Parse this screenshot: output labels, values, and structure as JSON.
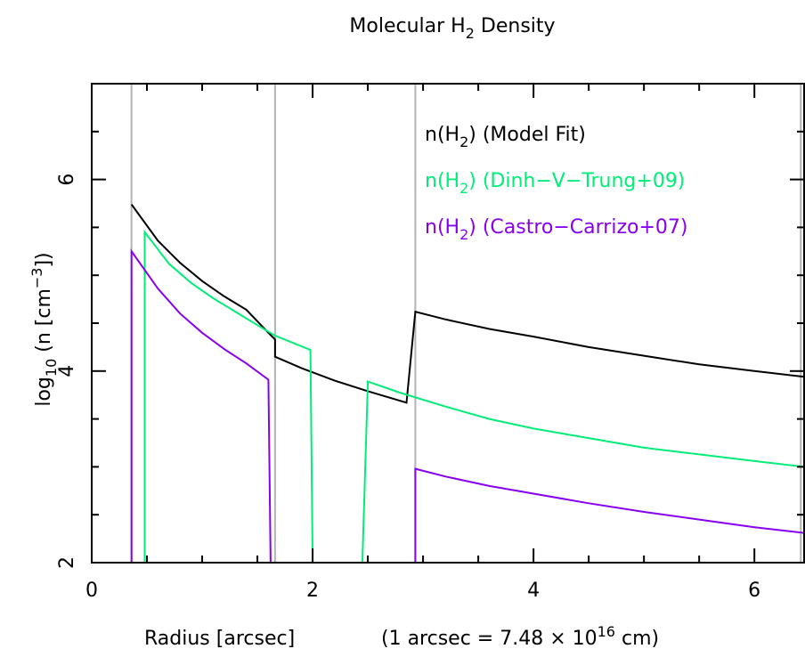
{
  "chart_data": {
    "type": "line",
    "title": {
      "main": "Molecular H",
      "sub": "2",
      "tail": " Density"
    },
    "xlabel": "Radius [arcsec]",
    "xlabel_note": {
      "pre": "(1 arcsec = 7.48 × 10",
      "sup": "16",
      "post": " cm)"
    },
    "ylabel": {
      "a": "log",
      "a_sub": "10",
      "b": " (n [cm",
      "b_sup": "−3",
      "c": "])"
    },
    "xlim": [
      0,
      6.45
    ],
    "ylim": [
      2,
      7
    ],
    "x_ticks": [
      0,
      2,
      4,
      6
    ],
    "y_ticks": [
      2,
      4,
      6
    ],
    "grid": false,
    "vertical_lines": [
      0.36,
      1.66,
      2.93,
      6.42
    ],
    "legend": {
      "placement": "top-right",
      "entries": [
        {
          "pre": "n(H",
          "sub": "2",
          "post": ") (Model Fit)",
          "color": "#000000"
        },
        {
          "pre": "n(H",
          "sub": "2",
          "post": ") (Dinh−V−Trung+09)",
          "color": "#00ee77"
        },
        {
          "pre": "n(H",
          "sub": "2",
          "post": ") (Castro−Carrizo+07)",
          "color": "#8800ee"
        }
      ]
    },
    "series": [
      {
        "color": "#000000",
        "x": [
          0.36,
          0.6,
          0.8,
          1.0,
          1.2,
          1.4,
          1.6,
          1.66,
          1.66,
          1.9,
          2.2,
          2.5,
          2.85,
          2.93,
          3.2,
          3.6,
          4.0,
          4.5,
          5.0,
          5.5,
          6.0,
          6.45
        ],
        "y": [
          5.74,
          5.36,
          5.13,
          4.94,
          4.78,
          4.64,
          4.4,
          4.33,
          4.15,
          4.03,
          3.9,
          3.79,
          3.67,
          4.62,
          4.54,
          4.44,
          4.36,
          4.25,
          4.16,
          4.07,
          4.0,
          3.94
        ]
      },
      {
        "color": "#00ee77",
        "x": [
          0.48,
          0.48,
          0.7,
          0.9,
          1.1,
          1.3,
          1.5,
          1.66,
          1.98,
          2.0,
          2.45,
          2.5,
          2.8,
          3.2,
          3.6,
          4.0,
          4.5,
          5.0,
          5.5,
          6.0,
          6.45
        ],
        "y": [
          2,
          5.45,
          5.12,
          4.92,
          4.76,
          4.62,
          4.48,
          4.37,
          4.22,
          2,
          2,
          3.89,
          3.77,
          3.63,
          3.5,
          3.4,
          3.3,
          3.2,
          3.13,
          3.06,
          3.0
        ]
      },
      {
        "color": "#8800ee",
        "x": [
          0.36,
          0.36,
          0.6,
          0.8,
          1.0,
          1.2,
          1.4,
          1.6,
          1.62,
          2.93,
          2.93,
          3.2,
          3.6,
          4.0,
          4.5,
          5.0,
          5.5,
          6.0,
          6.45
        ],
        "y": [
          2,
          5.25,
          4.86,
          4.6,
          4.4,
          4.23,
          4.08,
          3.91,
          2,
          2,
          2.98,
          2.9,
          2.8,
          2.72,
          2.62,
          2.53,
          2.45,
          2.37,
          2.31
        ]
      }
    ]
  }
}
